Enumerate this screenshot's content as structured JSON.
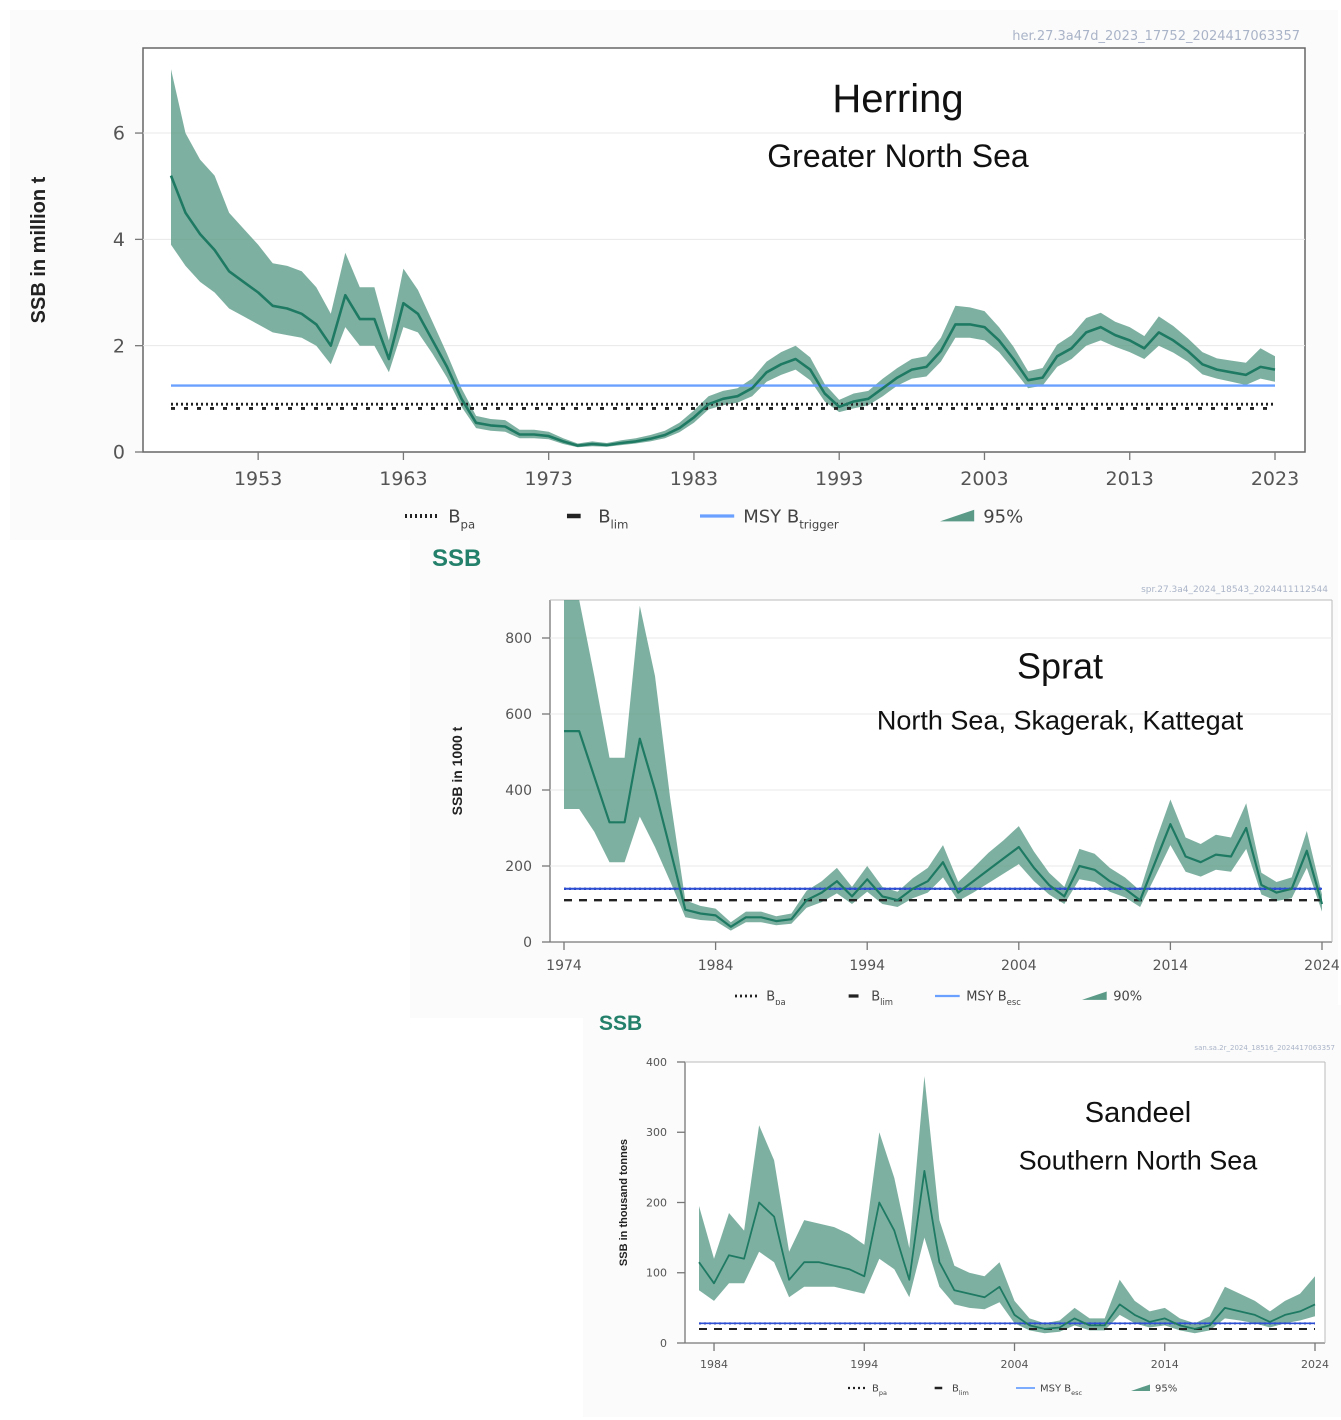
{
  "chart_data": [
    {
      "type": "line",
      "title": "Herring",
      "subtitle": "Greater North Sea",
      "stamp": "her.27.3a47d_2023_17752_2024417063357",
      "ylabel": "SSB in million t",
      "xlim": [
        1947,
        2023
      ],
      "ylim": [
        0,
        7.6
      ],
      "xticks": [
        1953,
        1963,
        1973,
        1983,
        1993,
        2003,
        2013,
        2023
      ],
      "yticks": [
        0,
        2,
        4,
        6
      ],
      "series": [
        {
          "name": "SSB",
          "x": [
            1947,
            1948,
            1949,
            1950,
            1951,
            1952,
            1953,
            1954,
            1955,
            1956,
            1957,
            1958,
            1959,
            1960,
            1961,
            1962,
            1963,
            1964,
            1965,
            1966,
            1967,
            1968,
            1969,
            1970,
            1971,
            1972,
            1973,
            1974,
            1975,
            1976,
            1977,
            1978,
            1979,
            1980,
            1981,
            1982,
            1983,
            1984,
            1985,
            1986,
            1987,
            1988,
            1989,
            1990,
            1991,
            1992,
            1993,
            1994,
            1995,
            1996,
            1997,
            1998,
            1999,
            2000,
            2001,
            2002,
            2003,
            2004,
            2005,
            2006,
            2007,
            2008,
            2009,
            2010,
            2011,
            2012,
            2013,
            2014,
            2015,
            2016,
            2017,
            2018,
            2019,
            2020,
            2021,
            2022,
            2023
          ],
          "y": [
            5.2,
            4.5,
            4.1,
            3.8,
            3.4,
            3.2,
            3.0,
            2.75,
            2.7,
            2.6,
            2.4,
            2.0,
            2.95,
            2.5,
            2.5,
            1.75,
            2.8,
            2.6,
            2.1,
            1.6,
            1.0,
            0.55,
            0.5,
            0.48,
            0.33,
            0.33,
            0.3,
            0.2,
            0.12,
            0.15,
            0.13,
            0.17,
            0.2,
            0.25,
            0.32,
            0.45,
            0.65,
            0.9,
            1.0,
            1.05,
            1.2,
            1.5,
            1.65,
            1.75,
            1.55,
            1.1,
            0.85,
            0.95,
            1.0,
            1.2,
            1.4,
            1.55,
            1.6,
            1.9,
            2.4,
            2.4,
            2.35,
            2.1,
            1.75,
            1.35,
            1.4,
            1.8,
            1.95,
            2.25,
            2.35,
            2.2,
            2.1,
            1.95,
            2.25,
            2.1,
            1.9,
            1.65,
            1.55,
            1.5,
            1.45,
            1.6,
            1.55
          ],
          "lower": [
            3.9,
            3.5,
            3.2,
            3.0,
            2.7,
            2.55,
            2.4,
            2.25,
            2.2,
            2.15,
            2.0,
            1.65,
            2.35,
            2.0,
            2.0,
            1.5,
            2.35,
            2.25,
            1.85,
            1.4,
            0.85,
            0.45,
            0.4,
            0.38,
            0.26,
            0.26,
            0.24,
            0.15,
            0.09,
            0.11,
            0.1,
            0.13,
            0.16,
            0.2,
            0.26,
            0.37,
            0.55,
            0.8,
            0.88,
            0.93,
            1.05,
            1.32,
            1.45,
            1.55,
            1.35,
            0.95,
            0.75,
            0.82,
            0.88,
            1.05,
            1.25,
            1.38,
            1.42,
            1.7,
            2.15,
            2.15,
            2.1,
            1.88,
            1.55,
            1.2,
            1.25,
            1.6,
            1.75,
            2.0,
            2.1,
            1.98,
            1.88,
            1.75,
            2.0,
            1.87,
            1.7,
            1.46,
            1.38,
            1.32,
            1.26,
            1.38,
            1.32
          ],
          "upper": [
            7.2,
            6.0,
            5.5,
            5.2,
            4.5,
            4.2,
            3.9,
            3.55,
            3.5,
            3.4,
            3.1,
            2.6,
            3.75,
            3.1,
            3.1,
            2.1,
            3.45,
            3.05,
            2.45,
            1.85,
            1.2,
            0.68,
            0.62,
            0.6,
            0.42,
            0.42,
            0.38,
            0.26,
            0.16,
            0.2,
            0.17,
            0.22,
            0.26,
            0.32,
            0.4,
            0.55,
            0.78,
            1.05,
            1.15,
            1.2,
            1.38,
            1.7,
            1.88,
            2.0,
            1.78,
            1.28,
            0.98,
            1.1,
            1.15,
            1.38,
            1.58,
            1.75,
            1.8,
            2.15,
            2.75,
            2.72,
            2.65,
            2.35,
            1.98,
            1.52,
            1.58,
            2.02,
            2.2,
            2.52,
            2.62,
            2.45,
            2.35,
            2.18,
            2.55,
            2.37,
            2.14,
            1.88,
            1.76,
            1.72,
            1.68,
            1.95,
            1.8
          ]
        }
      ],
      "reference_lines": [
        {
          "name": "Bpa",
          "value": 0.9,
          "style": "dotted",
          "color": "#222222"
        },
        {
          "name": "Blim",
          "value": 0.82,
          "style": "dashed",
          "color": "#222222"
        },
        {
          "name": "MSY Btrigger",
          "value": 1.25,
          "style": "solid",
          "color": "#6aa0ff"
        }
      ],
      "legend": [
        {
          "label": "B",
          "sub": "pa",
          "style": "dotted"
        },
        {
          "label": "B",
          "sub": "lim",
          "style": "dash"
        },
        {
          "label": "MSY B",
          "sub": "trigger",
          "style": "line"
        },
        {
          "label": "95%",
          "sub": "",
          "style": "band"
        }
      ],
      "colors": {
        "line": "#1f7a63",
        "band": "#5a9a87"
      }
    },
    {
      "type": "line",
      "heading": "SSB",
      "title": "Sprat",
      "subtitle": "North Sea, Skagerak, Kattegat",
      "stamp": "spr.27.3a4_2024_18543_2024411112544",
      "ylabel": "SSB in 1000 t",
      "xlim": [
        1974,
        2024
      ],
      "ylim": [
        0,
        900
      ],
      "xticks": [
        1974,
        1984,
        1994,
        2004,
        2014,
        2024
      ],
      "yticks": [
        0,
        200,
        400,
        600,
        800
      ],
      "series": [
        {
          "name": "SSB",
          "x": [
            1974,
            1975,
            1976,
            1977,
            1978,
            1979,
            1980,
            1981,
            1982,
            1983,
            1984,
            1985,
            1986,
            1987,
            1988,
            1989,
            1990,
            1991,
            1992,
            1993,
            1994,
            1995,
            1996,
            1997,
            1998,
            1999,
            2000,
            2001,
            2002,
            2003,
            2004,
            2005,
            2006,
            2007,
            2008,
            2009,
            2010,
            2011,
            2012,
            2013,
            2014,
            2015,
            2016,
            2017,
            2018,
            2019,
            2020,
            2021,
            2022,
            2023,
            2024
          ],
          "y": [
            555,
            555,
            435,
            315,
            315,
            535,
            400,
            245,
            85,
            75,
            70,
            40,
            65,
            65,
            55,
            60,
            110,
            130,
            160,
            120,
            165,
            120,
            110,
            140,
            160,
            210,
            130,
            160,
            190,
            220,
            250,
            195,
            150,
            120,
            200,
            190,
            160,
            140,
            110,
            210,
            310,
            225,
            210,
            230,
            225,
            300,
            150,
            130,
            140,
            240,
            100
          ],
          "lower": [
            350,
            350,
            290,
            210,
            210,
            330,
            250,
            160,
            65,
            58,
            55,
            30,
            52,
            52,
            44,
            48,
            90,
            105,
            128,
            100,
            132,
            100,
            92,
            115,
            130,
            170,
            108,
            130,
            155,
            180,
            205,
            160,
            125,
            100,
            165,
            158,
            132,
            118,
            92,
            172,
            255,
            185,
            172,
            190,
            185,
            245,
            125,
            108,
            115,
            195,
            80
          ],
          "upper": [
            900,
            900,
            700,
            485,
            485,
            885,
            700,
            380,
            110,
            95,
            88,
            52,
            80,
            80,
            68,
            75,
            135,
            160,
            195,
            145,
            200,
            145,
            132,
            168,
            195,
            255,
            158,
            195,
            235,
            268,
            305,
            238,
            182,
            145,
            245,
            232,
            195,
            170,
            135,
            262,
            375,
            275,
            258,
            282,
            275,
            365,
            182,
            158,
            170,
            292,
            125
          ]
        }
      ],
      "reference_lines": [
        {
          "name": "Bpa",
          "value": 140,
          "style": "dotted",
          "color": "#1a237e"
        },
        {
          "name": "Blim",
          "value": 110,
          "style": "dashed",
          "color": "#222222"
        },
        {
          "name": "MSY Besc",
          "value": 140,
          "style": "solid",
          "color": "#2c4fd6"
        }
      ],
      "legend": [
        {
          "label": "B",
          "sub": "pa",
          "style": "dotted"
        },
        {
          "label": "B",
          "sub": "lim",
          "style": "dash"
        },
        {
          "label": "MSY B",
          "sub": "esc",
          "style": "line"
        },
        {
          "label": "90%",
          "sub": "",
          "style": "band"
        }
      ],
      "colors": {
        "line": "#1f7a63",
        "band": "#5a9a87"
      }
    },
    {
      "type": "line",
      "heading": "SSB",
      "title": "Sandeel",
      "subtitle": "Southern North Sea",
      "stamp": "san.sa.2r_2024_18516_2024417063357",
      "ylabel": "SSB in thousand tonnes",
      "xlim": [
        1983,
        2024
      ],
      "ylim": [
        0,
        400
      ],
      "xticks": [
        1984,
        1994,
        2004,
        2014,
        2024
      ],
      "yticks": [
        0,
        100,
        200,
        300,
        400
      ],
      "series": [
        {
          "name": "SSB",
          "x": [
            1983,
            1984,
            1985,
            1986,
            1987,
            1988,
            1989,
            1990,
            1991,
            1992,
            1993,
            1994,
            1995,
            1996,
            1997,
            1998,
            1999,
            2000,
            2001,
            2002,
            2003,
            2004,
            2005,
            2006,
            2007,
            2008,
            2009,
            2010,
            2011,
            2012,
            2013,
            2014,
            2015,
            2016,
            2017,
            2018,
            2019,
            2020,
            2021,
            2022,
            2023,
            2024
          ],
          "y": [
            115,
            85,
            125,
            120,
            200,
            180,
            90,
            115,
            115,
            110,
            105,
            95,
            200,
            160,
            90,
            245,
            115,
            75,
            70,
            65,
            80,
            40,
            25,
            20,
            22,
            35,
            25,
            25,
            55,
            40,
            30,
            35,
            25,
            20,
            25,
            50,
            45,
            40,
            30,
            40,
            45,
            55
          ],
          "lower": [
            75,
            60,
            85,
            85,
            130,
            115,
            65,
            80,
            80,
            80,
            75,
            70,
            120,
            105,
            65,
            150,
            80,
            55,
            50,
            48,
            58,
            28,
            18,
            14,
            16,
            25,
            18,
            18,
            40,
            28,
            22,
            25,
            18,
            14,
            18,
            35,
            32,
            28,
            22,
            28,
            32,
            38
          ],
          "upper": [
            195,
            120,
            185,
            160,
            310,
            260,
            130,
            175,
            170,
            165,
            155,
            140,
            300,
            235,
            135,
            380,
            175,
            110,
            100,
            95,
            115,
            60,
            35,
            28,
            32,
            50,
            35,
            35,
            90,
            60,
            45,
            50,
            35,
            28,
            38,
            80,
            70,
            60,
            45,
            60,
            70,
            95
          ]
        }
      ],
      "reference_lines": [
        {
          "name": "Bpa",
          "value": 28,
          "style": "dotted",
          "color": "#1a237e"
        },
        {
          "name": "Blim",
          "value": 20,
          "style": "dashed",
          "color": "#222222"
        },
        {
          "name": "MSY Besc",
          "value": 28,
          "style": "solid",
          "color": "#2c4fd6"
        }
      ],
      "legend": [
        {
          "label": "B",
          "sub": "pa",
          "style": "dotted"
        },
        {
          "label": "B",
          "sub": "lim",
          "style": "dash"
        },
        {
          "label": "MSY B",
          "sub": "esc",
          "style": "line"
        },
        {
          "label": "95%",
          "sub": "",
          "style": "band"
        }
      ],
      "colors": {
        "line": "#1f7a63",
        "band": "#5a9a87"
      }
    }
  ]
}
